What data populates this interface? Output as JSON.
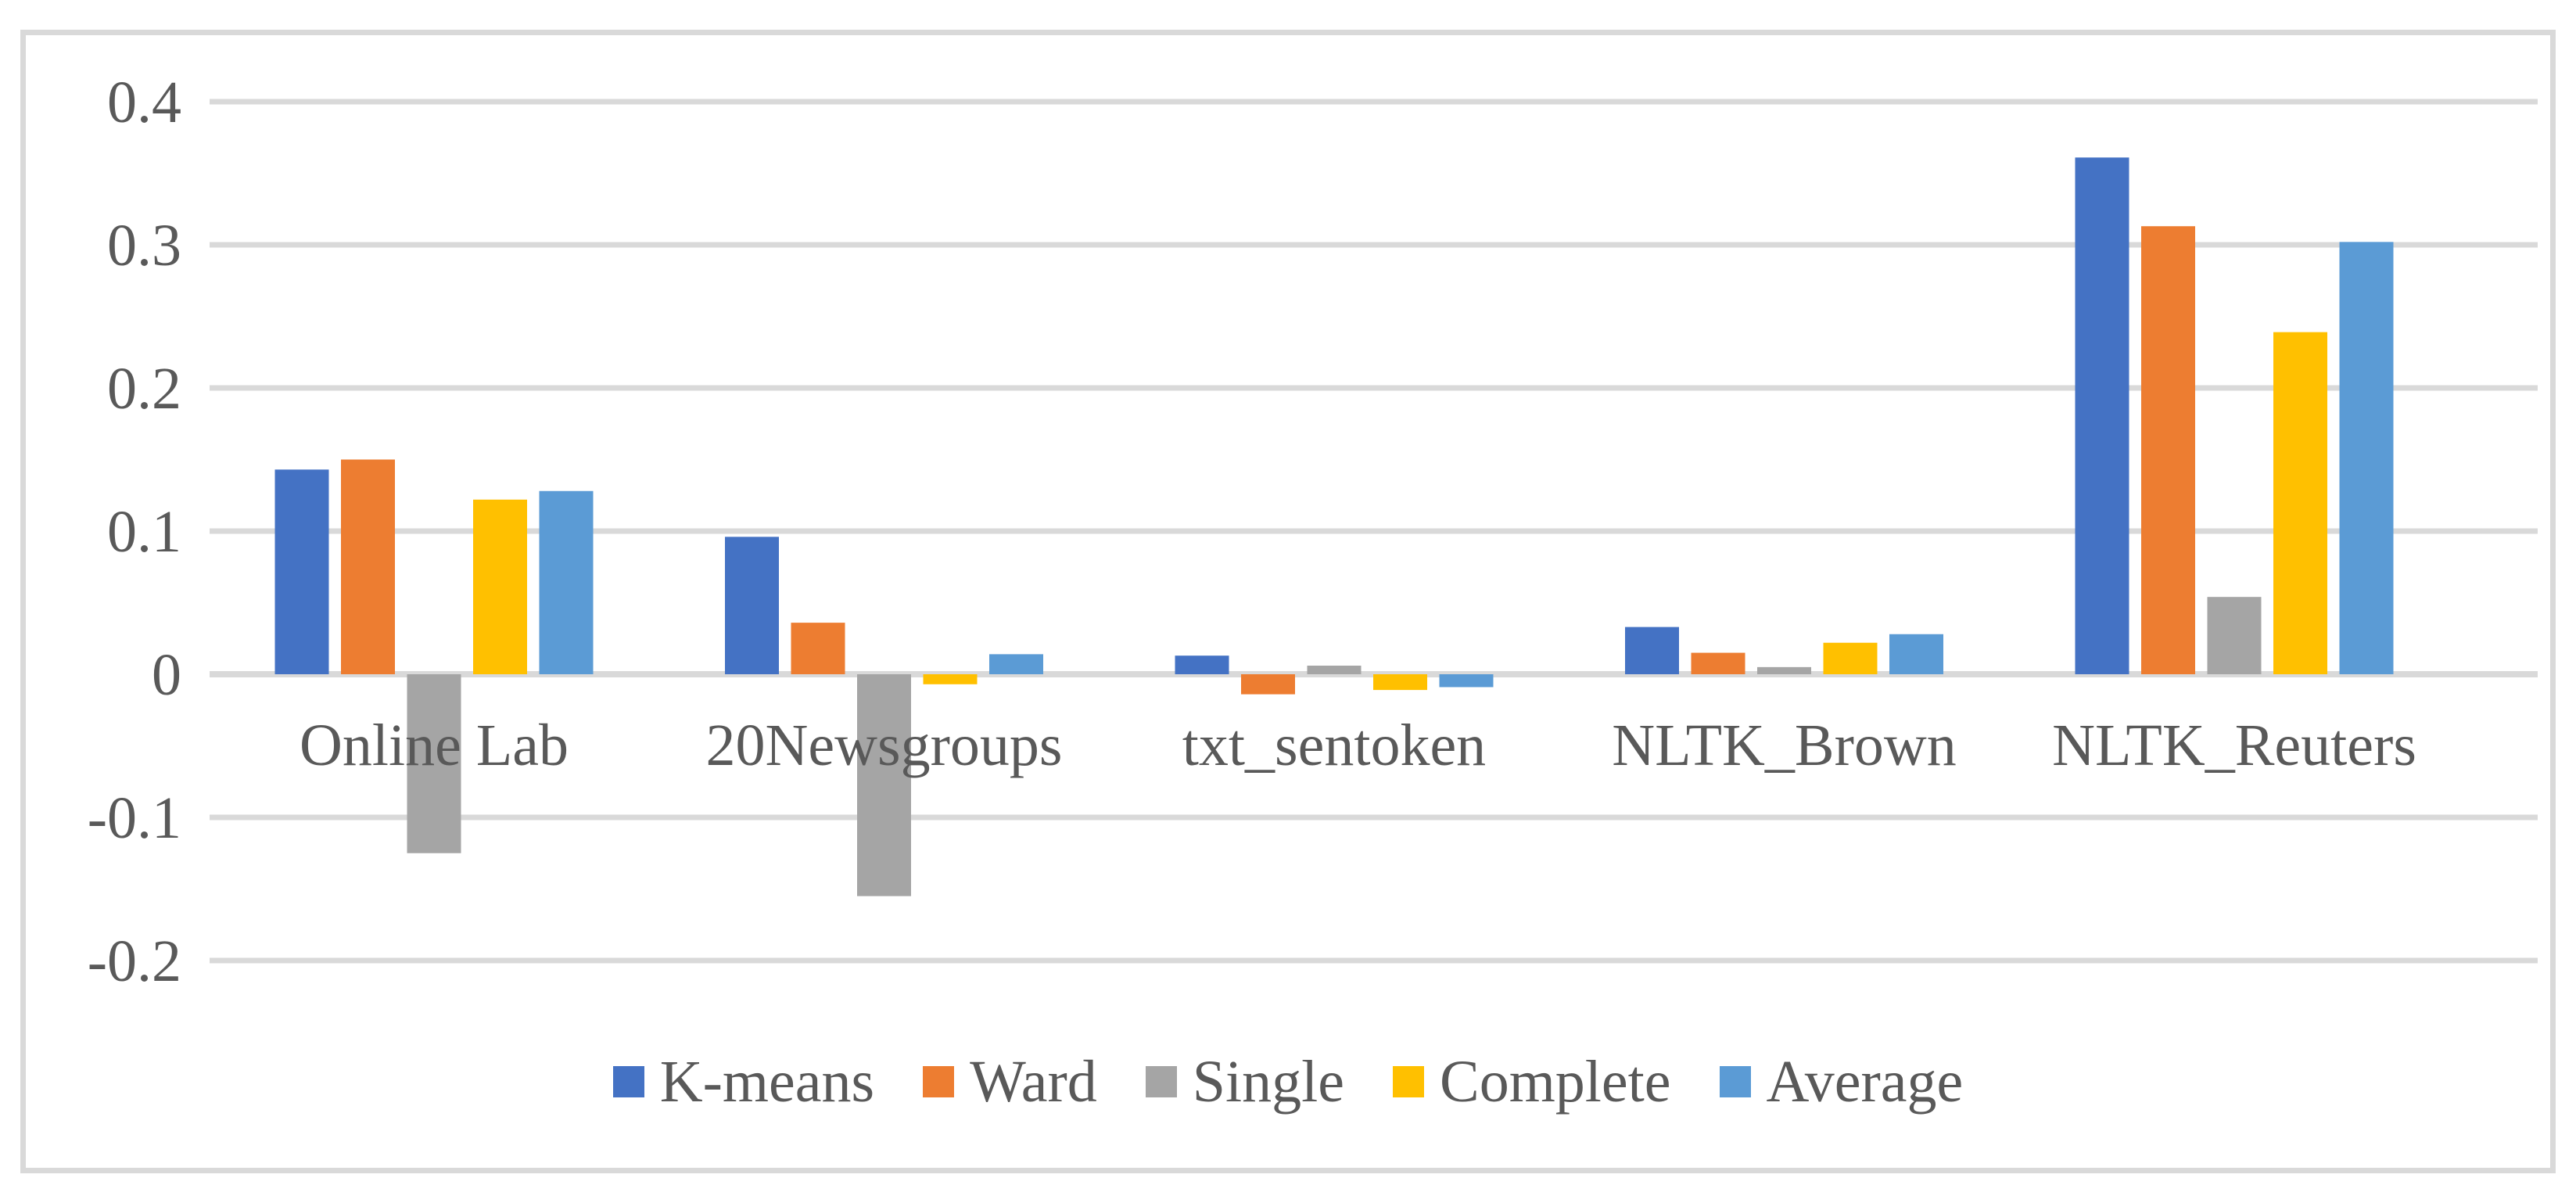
{
  "chart_data": {
    "type": "bar",
    "title": "",
    "categories": [
      "Online Lab",
      "20Newsgroups",
      "txt_sentoken",
      "NLTK_Brown",
      "NLTK_Reuters"
    ],
    "series": [
      {
        "name": "K-means",
        "color": "#4472C4",
        "values": [
          0.143,
          0.096,
          0.013,
          0.033,
          0.361
        ]
      },
      {
        "name": "Ward",
        "color": "#ED7D31",
        "values": [
          0.15,
          0.036,
          -0.014,
          0.015,
          0.313
        ]
      },
      {
        "name": "Single",
        "color": "#A5A5A5",
        "values": [
          -0.125,
          -0.155,
          0.006,
          0.005,
          0.054
        ]
      },
      {
        "name": "Complete",
        "color": "#FFC000",
        "values": [
          0.122,
          -0.007,
          -0.011,
          0.022,
          0.239
        ]
      },
      {
        "name": "Average",
        "color": "#5B9BD5",
        "values": [
          0.128,
          0.014,
          -0.009,
          0.028,
          0.302
        ]
      }
    ],
    "y_axis": {
      "ticks": [
        0.4,
        0.3,
        0.2,
        0.1,
        0,
        -0.1,
        -0.2
      ],
      "tick_labels": [
        "0.4",
        "0.3",
        "0.2",
        "0.1",
        "0",
        "-0.1",
        "-0.2"
      ],
      "range": [
        -0.2,
        0.4
      ]
    },
    "legend": {
      "position": "bottom",
      "entries": [
        "K-means",
        "Ward",
        "Single",
        "Complete",
        "Average"
      ]
    },
    "grid": true,
    "colors": {
      "gridline": "#D9D9D9",
      "frame": "#D9D9D9",
      "text": "#595959",
      "background": "#FFFFFF"
    }
  }
}
